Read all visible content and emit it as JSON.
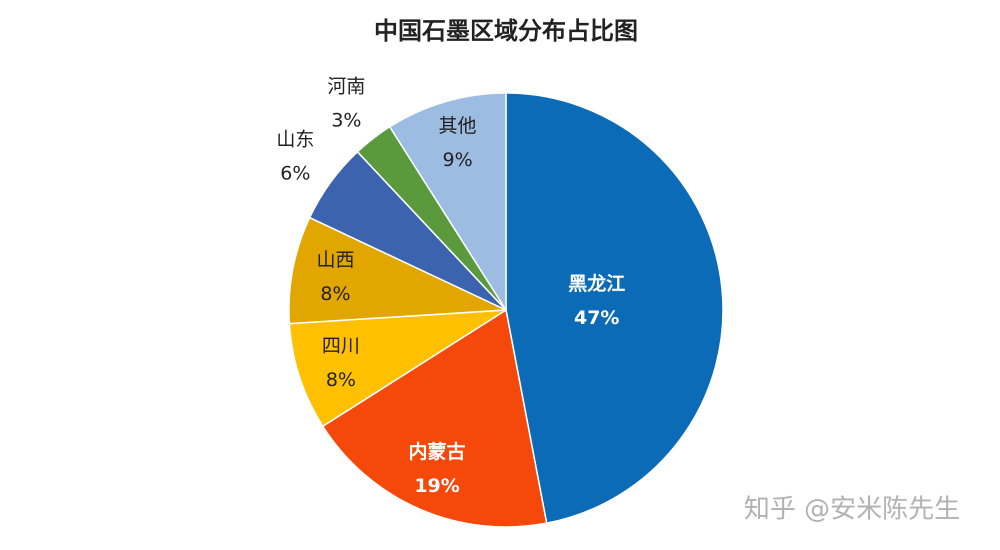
{
  "chart_data": {
    "type": "pie",
    "title": "中国石墨区域分布占比图",
    "categories": [
      "黑龙江",
      "内蒙古",
      "四川",
      "山西",
      "山东",
      "河南",
      "其他"
    ],
    "values": [
      47,
      19,
      8,
      8,
      6,
      3,
      9
    ],
    "value_labels": [
      "47%",
      "19%",
      "8%",
      "8%",
      "6%",
      "3%",
      "9%"
    ],
    "colors": [
      "#0b6bb7",
      "#f4490b",
      "#ffc000",
      "#e1a700",
      "#3c63ad",
      "#5a9a3c",
      "#9dbce2"
    ],
    "watermark": "知乎 @安米陈先生"
  }
}
